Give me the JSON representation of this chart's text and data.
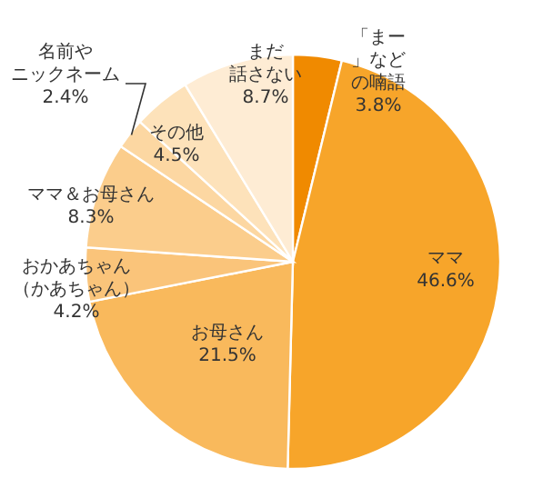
{
  "chart_data": {
    "type": "pie",
    "categories": [
      "「まー」などの喃語",
      "ママ",
      "お母さん",
      "おかあちゃん（かあちゃん）",
      "ママ＆お母さん",
      "名前やニックネーム",
      "その他",
      "まだ話さない"
    ],
    "values": [
      3.8,
      46.6,
      21.5,
      4.2,
      8.3,
      2.4,
      4.5,
      8.7
    ],
    "colors": [
      "#f08a00",
      "#f7a52a",
      "#f9b95c",
      "#fac47a",
      "#fbcd8c",
      "#fcd7a2",
      "#fde2ba",
      "#feecd4"
    ],
    "value_labels": [
      "3.8%",
      "46.6%",
      "21.5%",
      "4.2%",
      "8.3%",
      "2.4%",
      "4.5%",
      "8.7%"
    ]
  }
}
